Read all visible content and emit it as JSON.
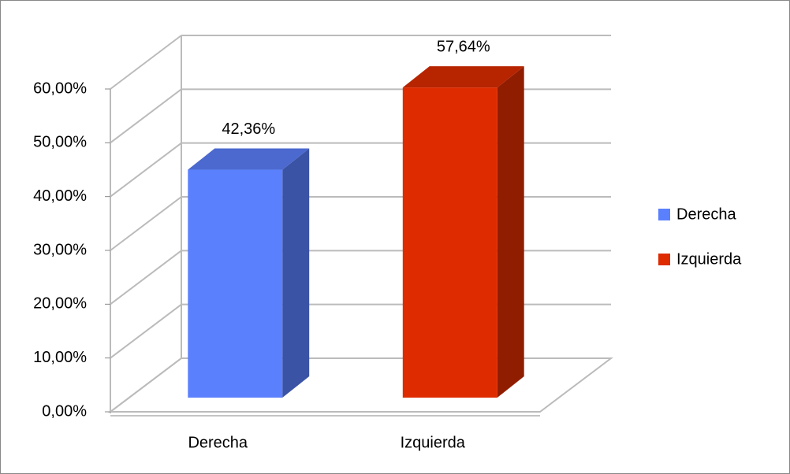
{
  "chart_data": {
    "type": "bar3d",
    "categories": [
      "Derecha",
      "Izquierda"
    ],
    "values": [
      42.36,
      57.64
    ],
    "value_labels": [
      "42,36%",
      "57,64%"
    ],
    "colors": [
      "#5b80fd",
      "#de2c00"
    ],
    "ylim": [
      0,
      60
    ],
    "yticks": [
      {
        "value": 0,
        "label": "0,00%"
      },
      {
        "value": 10,
        "label": "10,00%"
      },
      {
        "value": 20,
        "label": "20,00%"
      },
      {
        "value": 30,
        "label": "30,00%"
      },
      {
        "value": 40,
        "label": "40,00%"
      },
      {
        "value": 50,
        "label": "50,00%"
      },
      {
        "value": 60,
        "label": "60,00%"
      }
    ],
    "grid": true,
    "legend": "right"
  }
}
